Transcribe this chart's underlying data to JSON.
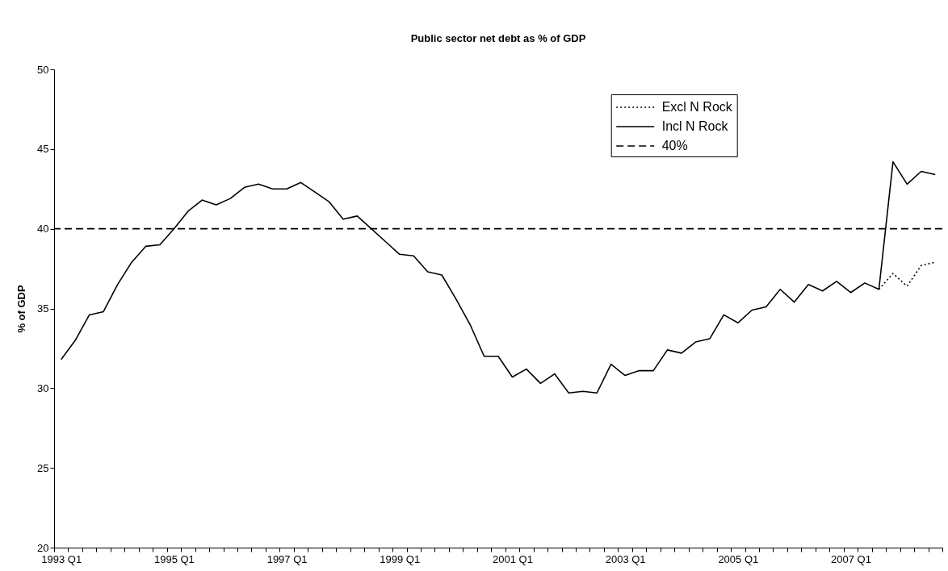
{
  "chart_data": {
    "type": "line",
    "title": "Public sector net debt as % of GDP",
    "ylabel": "% of GDP",
    "categories": [
      "1993 Q1",
      null,
      null,
      null,
      null,
      null,
      null,
      null,
      "1995 Q1",
      null,
      null,
      null,
      null,
      null,
      null,
      null,
      "1997 Q1",
      null,
      null,
      null,
      null,
      null,
      null,
      null,
      "1999 Q1",
      null,
      null,
      null,
      null,
      null,
      null,
      null,
      "2001 Q1",
      null,
      null,
      null,
      null,
      null,
      null,
      null,
      "2003 Q1",
      null,
      null,
      null,
      null,
      null,
      null,
      null,
      "2005 Q1",
      null,
      null,
      null,
      null,
      null,
      null,
      null,
      "2007 Q1",
      null,
      null,
      null,
      null,
      null,
      null
    ],
    "series": [
      {
        "name": "Excl N Rock",
        "color": "#000000",
        "line_style": "dotted",
        "values": [
          null,
          null,
          null,
          null,
          null,
          null,
          null,
          null,
          null,
          null,
          null,
          null,
          null,
          null,
          null,
          null,
          null,
          null,
          null,
          null,
          null,
          null,
          null,
          null,
          null,
          null,
          null,
          null,
          null,
          null,
          null,
          null,
          null,
          null,
          null,
          null,
          null,
          null,
          null,
          null,
          null,
          null,
          null,
          null,
          null,
          null,
          null,
          null,
          null,
          null,
          null,
          null,
          null,
          null,
          null,
          null,
          null,
          null,
          36.2,
          37.2,
          36.4,
          37.7,
          37.9
        ]
      },
      {
        "name": "Incl N Rock",
        "color": "#000000",
        "line_style": "solid",
        "values": [
          31.8,
          33.0,
          34.6,
          34.8,
          36.5,
          37.9,
          38.9,
          39.0,
          40.0,
          41.1,
          41.8,
          41.5,
          41.9,
          42.6,
          42.8,
          42.5,
          42.5,
          42.9,
          42.3,
          41.7,
          40.6,
          40.8,
          40.0,
          39.2,
          38.4,
          38.3,
          37.3,
          37.1,
          35.6,
          34.0,
          32.0,
          32.0,
          30.7,
          31.2,
          30.3,
          30.9,
          29.7,
          29.8,
          29.7,
          31.5,
          30.8,
          31.1,
          31.1,
          32.4,
          32.2,
          32.9,
          33.1,
          34.6,
          34.1,
          34.9,
          35.1,
          36.2,
          35.4,
          36.5,
          36.1,
          36.7,
          36.0,
          36.6,
          36.2,
          44.2,
          42.8,
          43.6,
          43.4
        ]
      }
    ],
    "ref_lines": [
      {
        "axis": "y",
        "value": 40,
        "label": "40%",
        "color": "#000000",
        "line_style": "dashed"
      }
    ],
    "ylim": [
      20,
      50
    ],
    "yticks": [
      20,
      25,
      30,
      35,
      40,
      45,
      50
    ],
    "legend": "top right"
  }
}
